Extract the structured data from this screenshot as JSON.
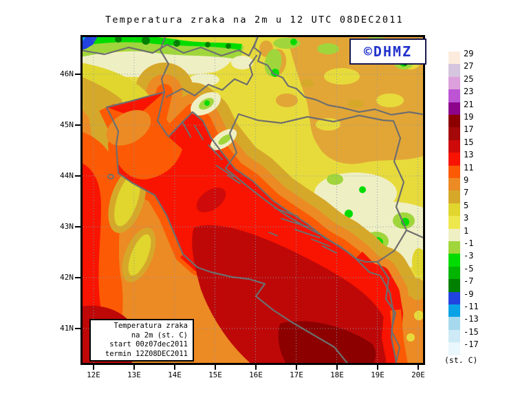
{
  "title": "Temperatura zraka na 2m u 12 UTC 08DEC2011",
  "logo": {
    "text": "©DHMZ",
    "color": "#2233cc"
  },
  "legend_box": {
    "lines": [
      "Temperatura zraka",
      "na 2m (st. C)",
      "start 00z07dec2011",
      "termin 12Z08DEC2011"
    ]
  },
  "map": {
    "lat_ticks": [
      "46N",
      "45N",
      "44N",
      "43N",
      "42N",
      "41N"
    ],
    "lon_ticks": [
      "12E",
      "13E",
      "14E",
      "15E",
      "16E",
      "17E",
      "18E",
      "19E",
      "20E"
    ]
  },
  "colorbar": {
    "unit_label": "(st. C)",
    "entries": [
      {
        "label": "29",
        "color": "#fcebdc"
      },
      {
        "label": "27",
        "color": "#d5c5de"
      },
      {
        "label": "25",
        "color": "#dca0dc"
      },
      {
        "label": "23",
        "color": "#bc54d4"
      },
      {
        "label": "21",
        "color": "#8c048c"
      },
      {
        "label": "19",
        "color": "#8c0000"
      },
      {
        "label": "17",
        "color": "#a40808"
      },
      {
        "label": "15",
        "color": "#ce0a0a"
      },
      {
        "label": "13",
        "color": "#f81400"
      },
      {
        "label": "11",
        "color": "#fc5a04"
      },
      {
        "label": "9",
        "color": "#ec8a24"
      },
      {
        "label": "7",
        "color": "#d6a82a"
      },
      {
        "label": "5",
        "color": "#e0d62e"
      },
      {
        "label": "3",
        "color": "#eee74e"
      },
      {
        "label": "1",
        "color": "#efefc4"
      },
      {
        "label": "-1",
        "color": "#a0d63c"
      },
      {
        "label": "-3",
        "color": "#00dc00"
      },
      {
        "label": "-5",
        "color": "#00b400"
      },
      {
        "label": "-7",
        "color": "#008000"
      },
      {
        "label": "-9",
        "color": "#2143e0"
      },
      {
        "label": "-11",
        "color": "#0aa2e6"
      },
      {
        "label": "-13",
        "color": "#a6d9ee"
      },
      {
        "label": "-15",
        "color": "#cdeaf6"
      },
      {
        "label": "-17",
        "color": "#eaf7fd"
      }
    ]
  },
  "colors": {
    "frame": "#000000",
    "country_border": "#6e6e6e",
    "graticule": "#8898a8",
    "land_base": "#e7db3b",
    "pannonia_warm_band": "#e2a636",
    "sea_red": "#f81400",
    "sea_dark_red": "#be0808",
    "sea_deep_red": "#8c0000"
  }
}
